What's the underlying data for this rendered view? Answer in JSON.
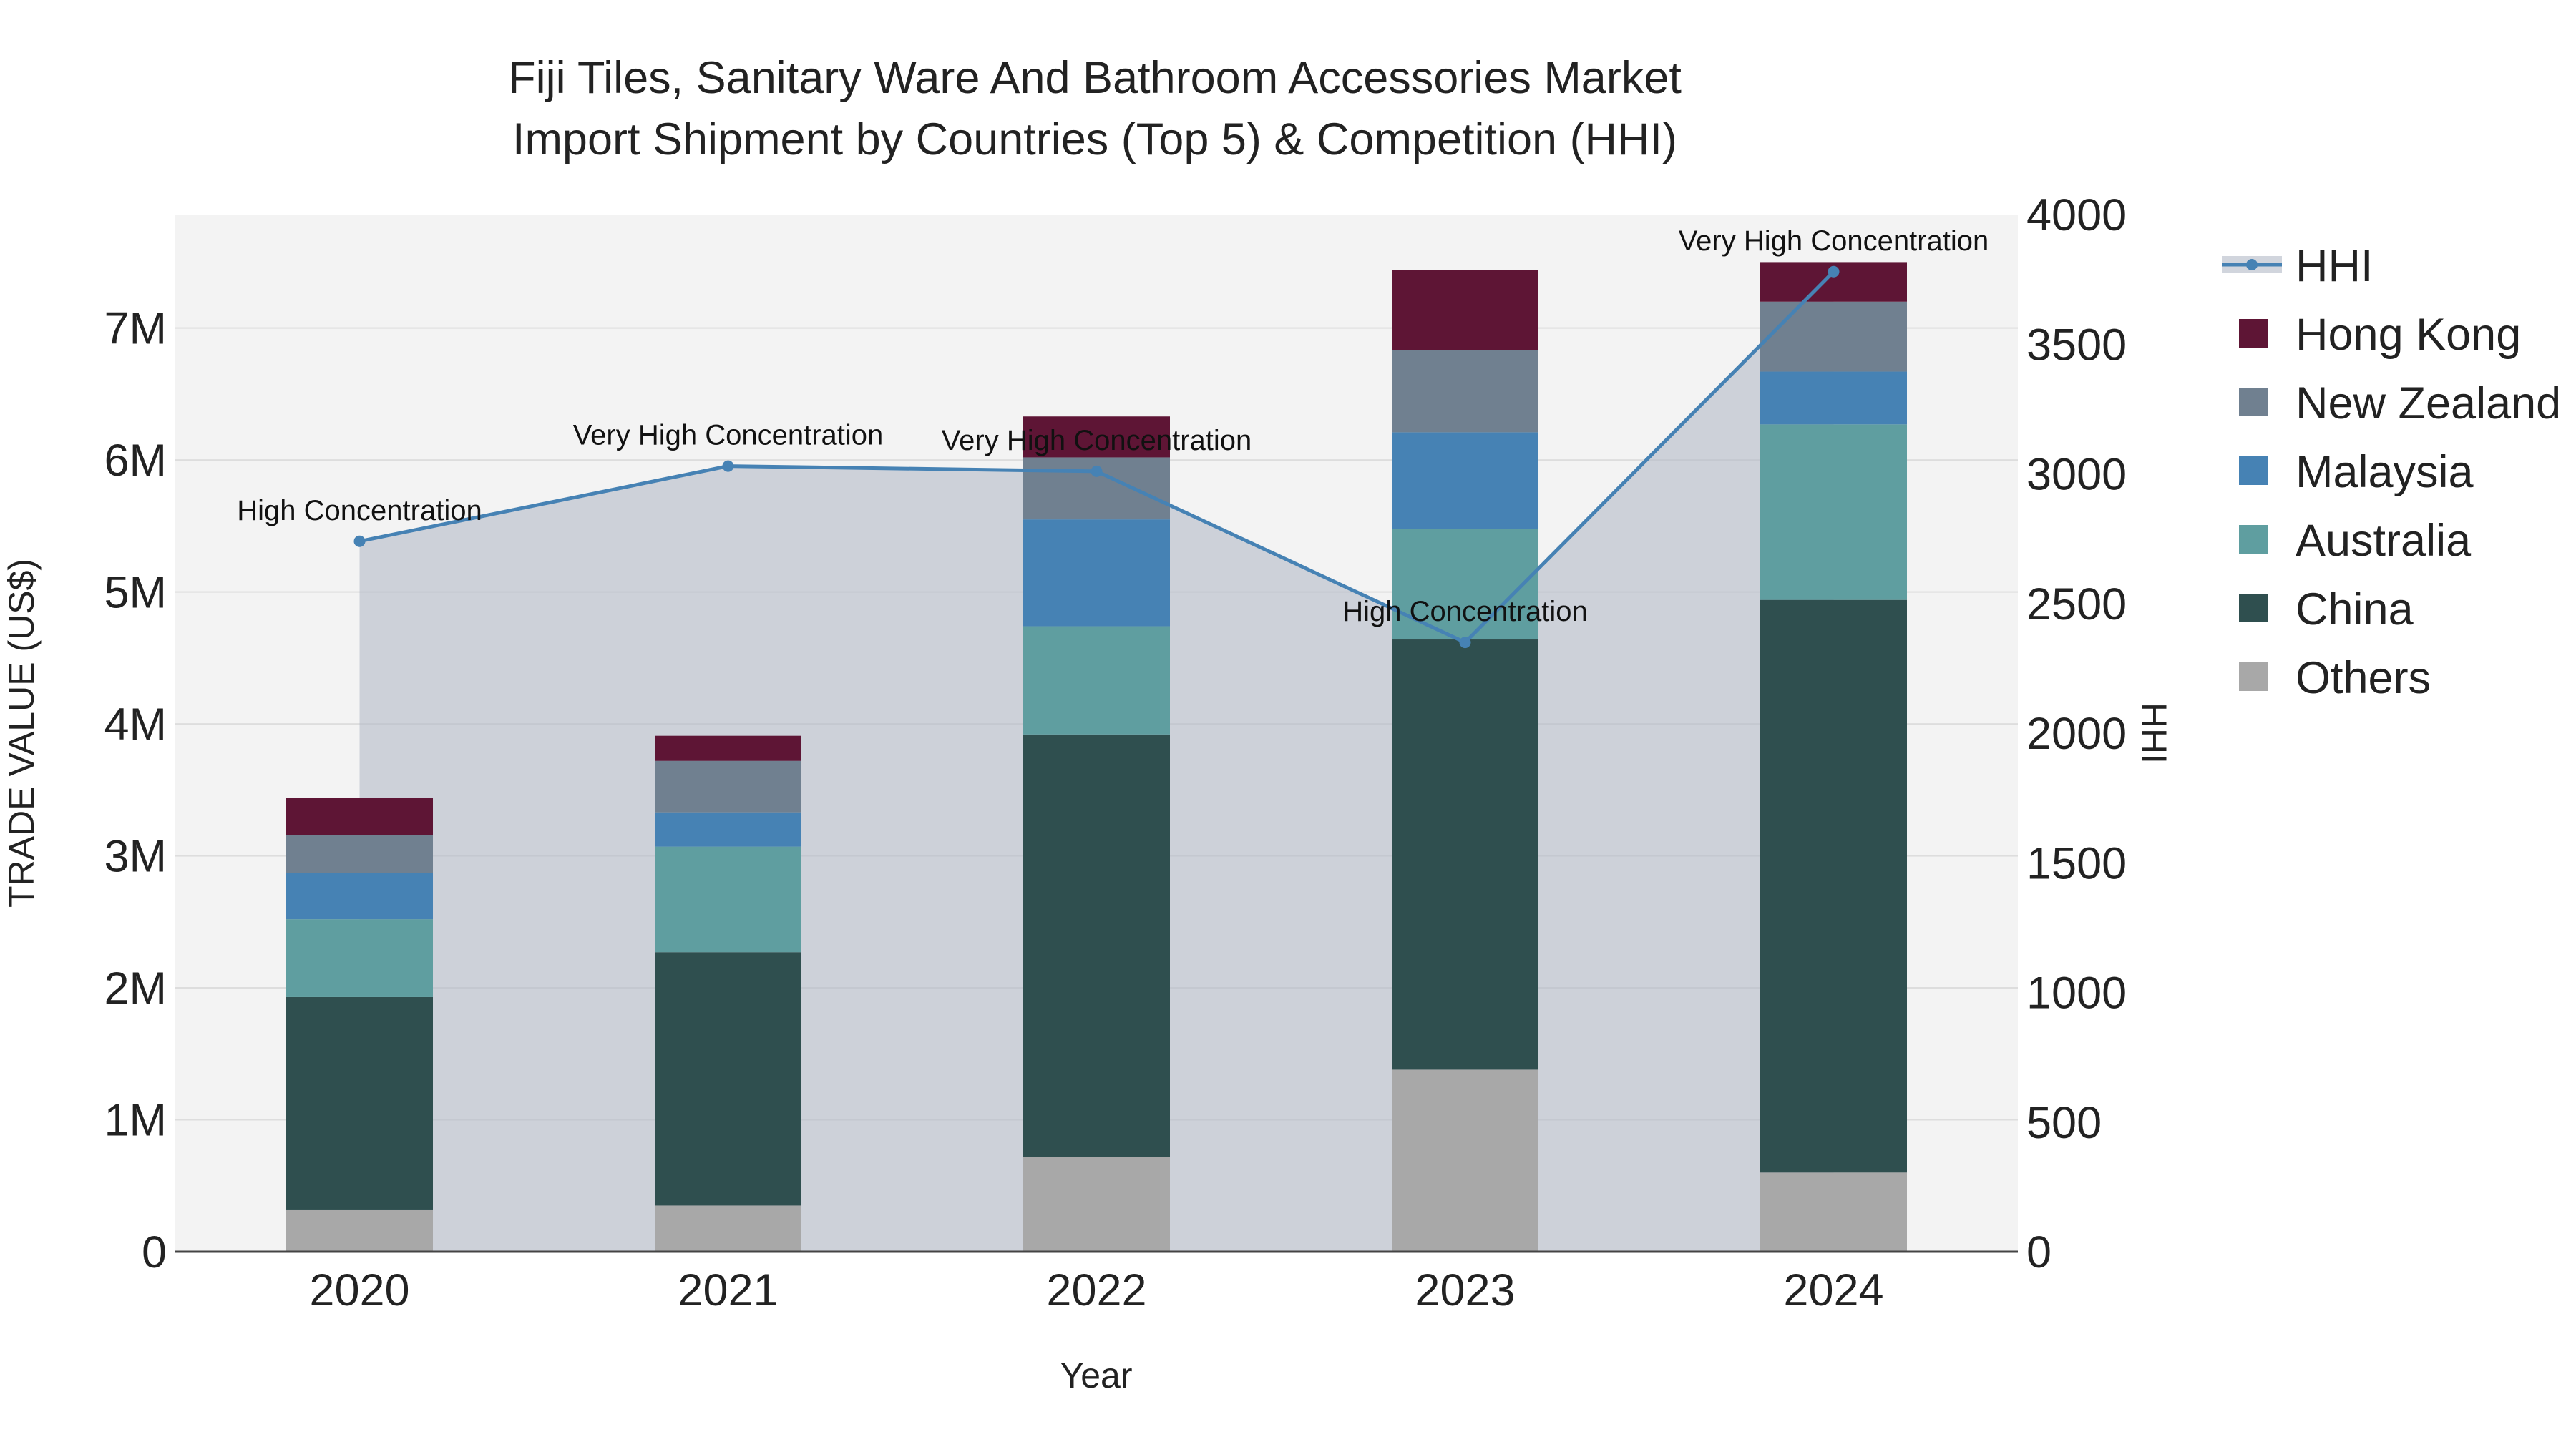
{
  "chart_data": {
    "type": "bar",
    "subtype": "stacked-bar-with-line",
    "title_lines": [
      "Fiji Tiles, Sanitary Ware And Bathroom Accessories Market",
      "Import Shipment by Countries (Top 5) & Competition (HHI)"
    ],
    "xlabel": "Year",
    "ylabel": "TRADE VALUE (US$)",
    "y2label": "HHI",
    "categories": [
      "2020",
      "2021",
      "2022",
      "2023",
      "2024"
    ],
    "ylim": [
      0,
      7860000
    ],
    "y_ticks": [
      0,
      1000000,
      2000000,
      3000000,
      4000000,
      5000000,
      6000000,
      7000000
    ],
    "y_tick_labels": [
      "0",
      "1M",
      "2M",
      "3M",
      "4M",
      "5M",
      "6M",
      "7M"
    ],
    "y2lim": [
      0,
      4000
    ],
    "y2_ticks": [
      0,
      500,
      1000,
      1500,
      2000,
      2500,
      3000,
      3500,
      4000
    ],
    "y2_tick_labels": [
      "0",
      "500",
      "1000",
      "1500",
      "2000",
      "2500",
      "3000",
      "3500",
      "4000"
    ],
    "series": [
      {
        "name": "Others",
        "color": "#a8a8a8",
        "values": [
          320000,
          350000,
          720000,
          1380000,
          600000
        ]
      },
      {
        "name": "China",
        "color": "#2f4f4f",
        "values": [
          1610000,
          1920000,
          3200000,
          3260000,
          4340000
        ]
      },
      {
        "name": "Australia",
        "color": "#5f9ea0",
        "values": [
          590000,
          800000,
          820000,
          840000,
          1330000
        ]
      },
      {
        "name": "Malaysia",
        "color": "#4682b4",
        "values": [
          350000,
          260000,
          810000,
          730000,
          400000
        ]
      },
      {
        "name": "New Zealand",
        "color": "#708090",
        "values": [
          290000,
          390000,
          470000,
          620000,
          530000
        ]
      },
      {
        "name": "Hong Kong",
        "color": "#5e1535",
        "values": [
          280000,
          190000,
          310000,
          610000,
          300000
        ]
      }
    ],
    "hhi": {
      "name": "HHI",
      "color": "#4682b4",
      "values": [
        2740,
        3030,
        3010,
        2350,
        3780
      ],
      "labels": [
        "High Concentration",
        "Very High Concentration",
        "Very High Concentration",
        "High Concentration",
        "Very High Concentration"
      ]
    },
    "legend": [
      "HHI",
      "Hong Kong",
      "New Zealand",
      "Malaysia",
      "Australia",
      "China",
      "Others"
    ],
    "legend_position": "right"
  }
}
